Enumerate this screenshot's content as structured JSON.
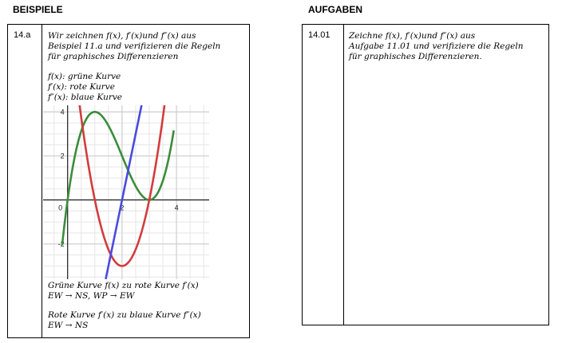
{
  "left": {
    "heading": "BEISPIELE",
    "number": "14.a",
    "intro": [
      "Wir zeichnen f(x), f′(x)und f″(x) aus",
      "Beispiel 11.a und verifizieren die Regeln",
      "für graphisches Differenzieren"
    ],
    "legend": [
      "f(x): grüne Kurve",
      "f′(x): rote Kurve",
      "f″(x): blaue Kurve"
    ],
    "rule1": [
      "Grüne Kurve f(x) zu rote Kurve f′(x)",
      "EW → NS, WP → EW"
    ],
    "rule2": [
      "Rote Kurve f′(x) zu blaue Kurve f″(x)",
      "EW → NS"
    ]
  },
  "right": {
    "heading": "AUFGABEN",
    "number": "14.01",
    "task": [
      "Zeichne f(x), f′(x)und f″(x) aus",
      "Aufgabe 11.01 und verifiziere die Regeln",
      "für graphisches Differenzieren."
    ]
  },
  "chart_data": {
    "type": "line",
    "title": "",
    "xlabel": "",
    "ylabel": "",
    "xlim": [
      -0.9,
      5.2
    ],
    "ylim": [
      -3.6,
      4.3
    ],
    "x_ticks": [
      "0",
      "2",
      "4"
    ],
    "y_ticks": [
      "4",
      "2",
      "-2"
    ],
    "grid": true,
    "series": [
      {
        "color": "#3c8c3c",
        "expr": "x^3 - 6x^2 + 9x",
        "x": [
          -0.2,
          0,
          0.5,
          1,
          1.5,
          2,
          2.5,
          3,
          3.5,
          3.9
        ],
        "y": [
          -1.97,
          0,
          3.13,
          4,
          3.38,
          2,
          0.63,
          0,
          0.88,
          3.16
        ]
      },
      {
        "color": "#d23c3c",
        "expr": "3x^2 - 12x + 9",
        "x": [
          0.25,
          0.5,
          1,
          1.5,
          2,
          2.5,
          3,
          3.5,
          3.75
        ],
        "y": [
          6.19,
          3.75,
          0,
          -2.25,
          -3,
          -2.25,
          0,
          3.75,
          6.19
        ]
      },
      {
        "color": "#4a4ae0",
        "expr": "6x - 12",
        "x": [
          1.4,
          2.85
        ],
        "y": [
          -3.6,
          5.1
        ]
      }
    ]
  }
}
